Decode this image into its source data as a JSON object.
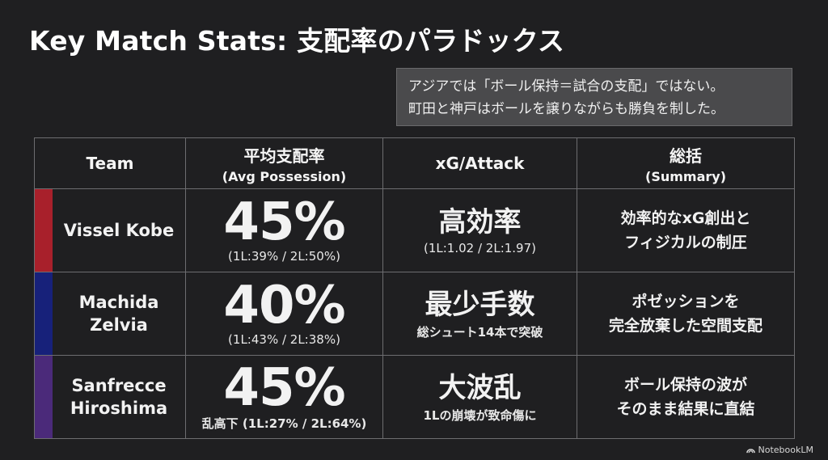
{
  "title": "Key Match Stats: 支配率のパラドックス",
  "callout": {
    "line1": "アジアでは「ボール保持＝試合の支配」ではない。",
    "line2": "町田と神戸はボールを譲りながらも勝負を制した。"
  },
  "table": {
    "headers": {
      "team": "Team",
      "possession_main": "平均支配率",
      "possession_sub": "(Avg Possession)",
      "xg": "xG/Attack",
      "summary_main": "総括",
      "summary_sub": "(Summary)"
    },
    "rows": [
      {
        "team_line1": "Vissel Kobe",
        "team_line2": "",
        "color": "#a8202b",
        "possession": "45%",
        "possession_detail": "(1L:39% / 2L:50%)",
        "xg_main": "高効率",
        "xg_detail": "(1L:1.02 / 2L:1.97)",
        "summary_line1": "効率的なxG創出と",
        "summary_line2": "フィジカルの制圧"
      },
      {
        "team_line1": "Machida",
        "team_line2": "Zelvia",
        "color": "#17217a",
        "possession": "40%",
        "possession_detail": "(1L:43% / 2L:38%)",
        "xg_main": "最少手数",
        "xg_detail": "総シュート14本で突破",
        "summary_line1": "ポゼッションを",
        "summary_line2": "完全放棄した空間支配"
      },
      {
        "team_line1": "Sanfrecce",
        "team_line2": "Hiroshima",
        "color": "#4b2a7a",
        "possession": "45%",
        "possession_detail": "乱高下 (1L:27% / 2L:64%)",
        "xg_main": "大波乱",
        "xg_detail": "1Lの崩壊が致命傷に",
        "summary_line1": "ボール保持の波が",
        "summary_line2": "そのまま結果に直結"
      }
    ]
  },
  "watermark": "NotebookLM"
}
